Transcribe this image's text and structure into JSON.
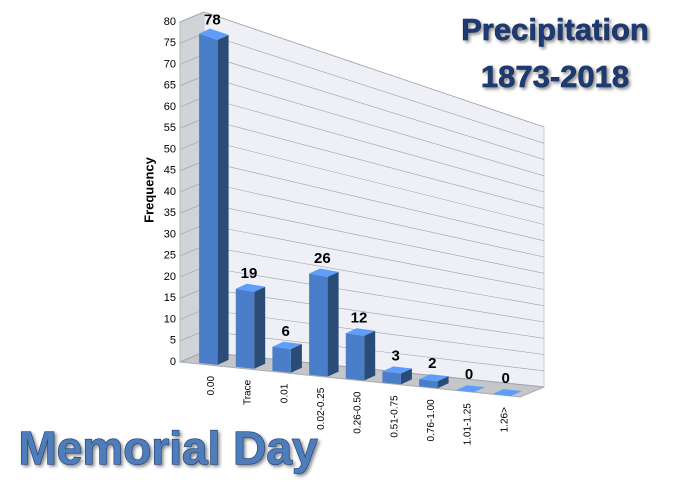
{
  "chart_data": {
    "type": "bar3d",
    "title": "Precipitation",
    "subtitle": "1873-2018",
    "annotation": "Memorial Day",
    "y_label": "Frequency",
    "categories": [
      "0.00",
      "Trace",
      "0.01",
      "0.02-0.25",
      "0.26-0.50",
      "0.51-0.75",
      "0.76-1.00",
      "1.01-1.25",
      "1.26>"
    ],
    "values": [
      78,
      19,
      6,
      26,
      12,
      3,
      2,
      0,
      0
    ],
    "color": "#4a7ec8",
    "ylim": [
      0,
      80
    ],
    "yticks": [
      0,
      5,
      10,
      15,
      20,
      25,
      30,
      35,
      40,
      45,
      50,
      55,
      60,
      65,
      70,
      75,
      80
    ],
    "grid": true
  }
}
